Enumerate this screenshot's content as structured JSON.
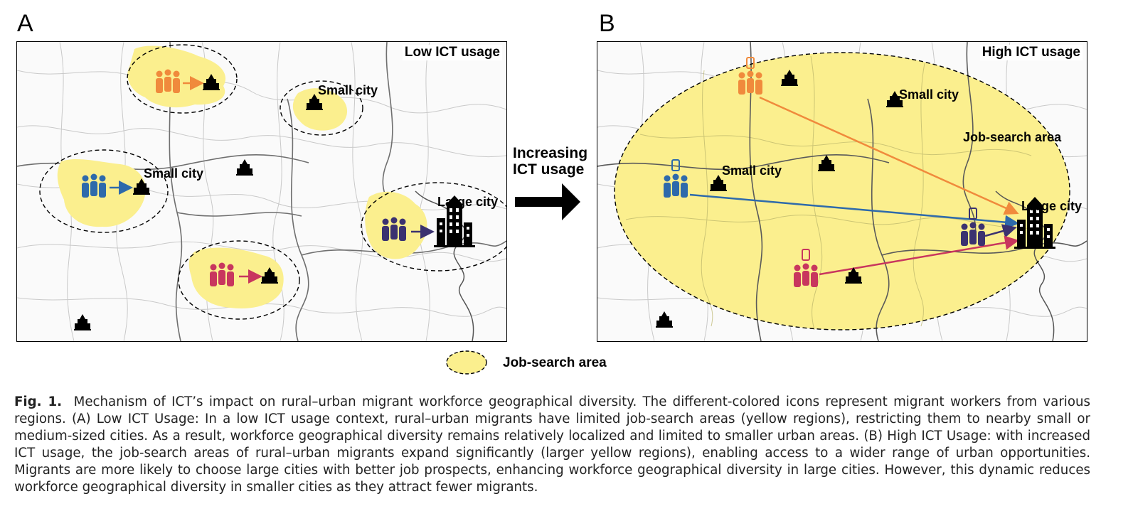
{
  "panels": {
    "a": {
      "letter": "A",
      "title": "Low ICT usage",
      "small_city_1": "Small city",
      "small_city_2": "Small city",
      "large_city": "Large city"
    },
    "b": {
      "letter": "B",
      "title": "High ICT usage",
      "small_city_1": "Small city",
      "small_city_2": "Small city",
      "large_city": "Large city",
      "job_search_area": "Job-search area"
    }
  },
  "transition": {
    "line1": "Increasing",
    "line2": "ICT usage"
  },
  "legend": {
    "label": "Job-search area",
    "fill_color": "#fbef8e"
  },
  "worker_colors": {
    "orange": "#f08a3c",
    "blue": "#2e6aab",
    "navy": "#3b3270",
    "crimson": "#c8365e"
  },
  "caption": {
    "fig_label": "Fig. 1.",
    "text": "Mechanism of ICT’s impact on rural–urban migrant workforce geographical diversity. The different-colored icons represent migrant workers from various regions. (A) Low ICT Usage: In a low ICT usage context, rural–urban migrants have limited job-search areas (yellow regions), restricting them to nearby small or medium-sized cities. As a result, workforce geographical diversity remains relatively localized and limited to smaller urban areas. (B) High ICT Usage: with increased ICT usage, the job-search areas of rural–urban migrants expand significantly (larger yellow regions), enabling access to a wider range of urban opportunities. Migrants are more likely to choose large cities with better job prospects, enhancing workforce geographical diversity in large cities. However, this dynamic reduces workforce geographical diversity in smaller cities as they attract fewer migrants."
  }
}
